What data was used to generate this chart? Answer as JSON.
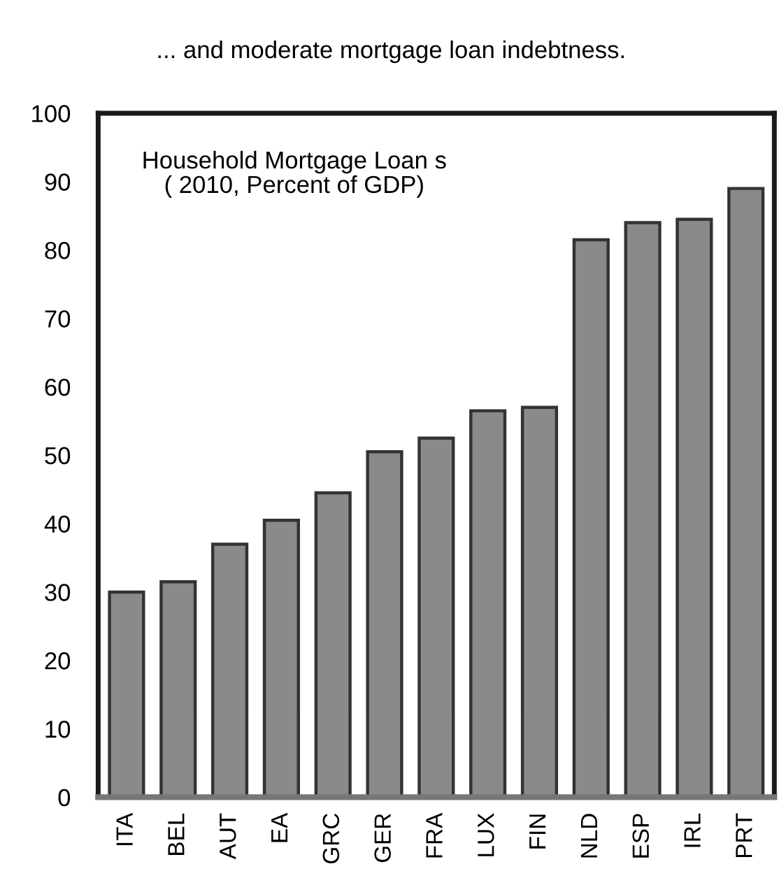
{
  "chart_data": {
    "type": "bar",
    "title": "... and moderate mortgage loan indebtness.",
    "subtitle": "Household Mortgage Loan s\n( 2010, Percent of GDP)",
    "categories": [
      "ITA",
      "BEL",
      "AUT",
      "EA",
      "GRC",
      "GER",
      "FRA",
      "LUX",
      "FIN",
      "NLD",
      "ESP",
      "IRL",
      "PRT"
    ],
    "values": [
      30,
      31.5,
      37,
      40.5,
      44.5,
      50.5,
      52.5,
      56.5,
      57,
      81.5,
      84,
      84.5,
      89
    ],
    "color": "#8a8a8a",
    "ylim": [
      0,
      100
    ],
    "yticks": [
      0,
      10,
      20,
      30,
      40,
      50,
      60,
      70,
      80,
      90,
      100
    ],
    "grid": false,
    "legend": false
  }
}
